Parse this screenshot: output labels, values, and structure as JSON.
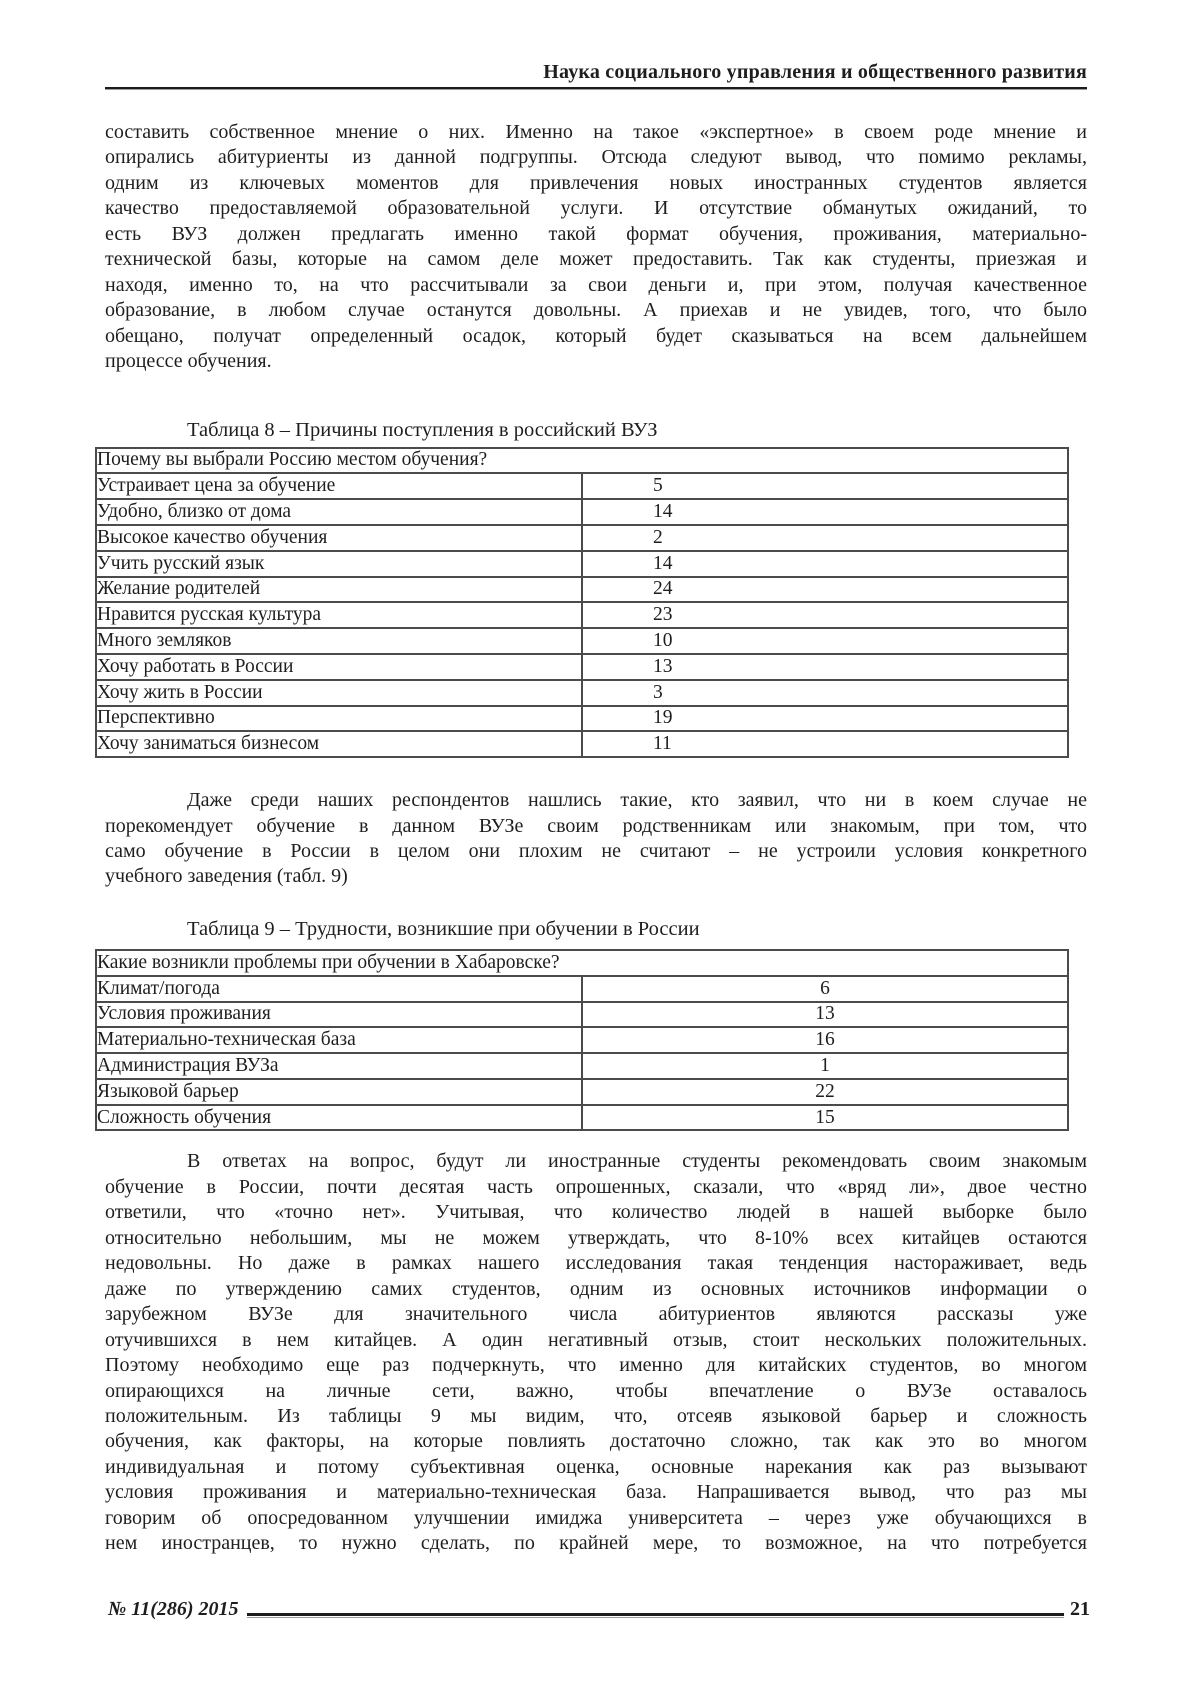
{
  "header": {
    "title": "Наука социального управления и общественного развития"
  },
  "paragraphs": {
    "p1": {
      "indent_first": false,
      "justify_last": false,
      "lines": [
        "составить собственное мнение о них. Именно на такое «экспертное» в своем роде мнение и",
        "опирались абитуриенты из данной подгруппы. Отсюда следуют вывод, что помимо рекламы,",
        "одним из ключевых моментов для привлечения новых иностранных студентов является",
        "качество предоставляемой образовательной услуги. И отсутствие обманутых ожиданий, то",
        "есть ВУЗ должен предлагать именно такой формат обучения, проживания, материально-",
        "технической базы, которые на самом деле может предоставить. Так как студенты, приезжая и",
        "находя, именно то, на что рассчитывали за свои деньги и, при этом, получая качественное",
        "образование, в любом случае останутся довольны. А приехав и не увидев, того, что было",
        "обещано, получат определенный осадок, который будет сказываться на всем дальнейшем",
        "процессе обучения."
      ]
    },
    "p2": {
      "indent_first": true,
      "justify_last": false,
      "lines": [
        "Даже среди наших респондентов нашлись такие, кто заявил, что ни в коем случае не",
        "порекомендует обучение в данном ВУЗе своим родственникам или знакомым, при том, что",
        "само обучение в России в целом они плохим не считают – не устроили условия конкретного",
        "учебного заведения (табл. 9)"
      ]
    },
    "p3": {
      "indent_first": true,
      "justify_last": true,
      "lines": [
        "В ответах на вопрос, будут ли иностранные студенты рекомендовать своим знакомым",
        "обучение в России, почти десятая часть опрошенных, сказали, что «вряд ли», двое честно",
        "ответили, что «точно нет». Учитывая, что количество людей в нашей выборке было",
        "относительно небольшим, мы не можем утверждать, что 8-10% всех китайцев остаются",
        "недовольны. Но даже в рамках нашего исследования такая тенденция настораживает, ведь",
        "даже по утверждению самих студентов, одним из основных источников информации о",
        "зарубежном ВУЗе для значительного числа абитуриентов являются рассказы уже",
        "отучившихся в нем китайцев. А один негативный отзыв, стоит нескольких положительных.",
        "Поэтому необходимо еще раз подчеркнуть, что именно для китайских студентов, во многом",
        "опирающихся на личные сети, важно, чтобы впечатление о ВУЗе оставалось",
        "положительным. Из таблицы 9 мы видим, что, отсеяв языковой барьер и сложность",
        "обучения, как факторы, на которые повлиять достаточно сложно, так как это во многом",
        "индивидуальная и потому субъективная оценка, основные нарекания как раз вызывают",
        "условия проживания и материально-техническая база. Напрашивается вывод, что раз мы",
        "говорим об опосредованном улучшении имиджа университета – через уже обучающихся в",
        "нем иностранцев, то нужно сделать, по крайней мере, то возможное, на что потребуется"
      ]
    }
  },
  "tables": [
    {
      "caption": "Таблица 8 – Причины поступления в российский ВУЗ",
      "header": "Почему вы выбрали Россию местом обучения?",
      "value_align": "left",
      "rows": [
        [
          "Устраивает цена за обучение",
          "5"
        ],
        [
          "Удобно, близко от дома",
          "14"
        ],
        [
          "Высокое качество обучения",
          "2"
        ],
        [
          "Учить русский язык",
          "14"
        ],
        [
          "Желание родителей",
          "24"
        ],
        [
          "Нравится русская культура",
          "23"
        ],
        [
          "Много земляков",
          "10"
        ],
        [
          "Хочу работать в России",
          "13"
        ],
        [
          "Хочу жить в России",
          "3"
        ],
        [
          "Перспективно",
          "19"
        ],
        [
          "Хочу заниматься бизнесом",
          "11"
        ]
      ]
    },
    {
      "caption": "Таблица 9 – Трудности, возникшие при обучении в России",
      "header": "Какие возникли проблемы при обучении в Хабаровске?",
      "value_align": "center",
      "rows": [
        [
          "Климат/погода",
          "6"
        ],
        [
          "Условия проживания",
          "13"
        ],
        [
          "Материально-техническая база",
          "16"
        ],
        [
          "Администрация ВУЗа",
          "1"
        ],
        [
          "Языковой барьер",
          "22"
        ],
        [
          "Сложность обучения",
          "15"
        ]
      ]
    }
  ],
  "footer": {
    "issue": "№ 11(286) 2015",
    "page_number": "21"
  },
  "chart_data": {
    "type": "table",
    "tables": [
      {
        "title": "Таблица 8 – Причины поступления в российский ВУЗ",
        "question": "Почему вы выбрали Россию местом обучения?",
        "categories": [
          "Устраивает цена за обучение",
          "Удобно, близко от дома",
          "Высокое качество обучения",
          "Учить русский язык",
          "Желание родителей",
          "Нравится русская культура",
          "Много земляков",
          "Хочу работать в России",
          "Хочу жить в России",
          "Перспективно",
          "Хочу заниматься бизнесом"
        ],
        "values": [
          5,
          14,
          2,
          14,
          24,
          23,
          10,
          13,
          3,
          19,
          11
        ]
      },
      {
        "title": "Таблица 9 – Трудности, возникшие при обучении в России",
        "question": "Какие возникли проблемы при обучении в Хабаровске?",
        "categories": [
          "Климат/погода",
          "Условия проживания",
          "Материально-техническая база",
          "Администрация ВУЗа",
          "Языковой барьер",
          "Сложность обучения"
        ],
        "values": [
          6,
          13,
          16,
          1,
          22,
          15
        ]
      }
    ]
  },
  "colors": {
    "ink": "#1e1e1e",
    "table_border": "#4b4b4b",
    "rule_shadow": "#9b9b9b",
    "page_background": "#ffffff"
  }
}
